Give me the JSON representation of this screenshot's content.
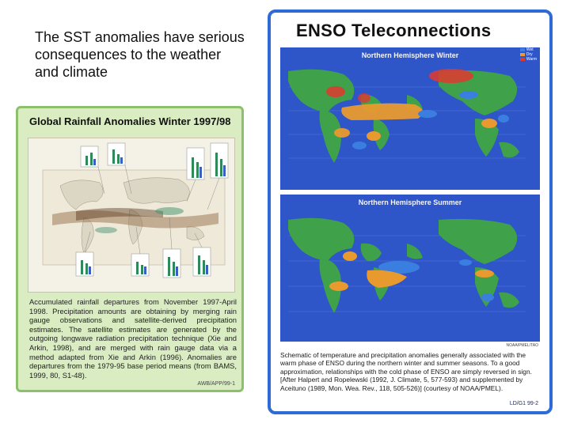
{
  "intro_text": "The SST anomalies have serious consequences to the weather and climate",
  "left_card": {
    "title": "Global Rainfall Anomalies Winter 1997/98",
    "description": "Accumulated rainfall departures from November 1997-April 1998. Precipitation amounts are obtaining by merging rain gauge observations and satellite-derived precipitation estimates. The satellite estimates are generated by the outgoing longwave radiation precipitation technique (Xie and Arkin, 1998), and are merged with rain gauge data via a method adapted from Xie and Arkin (1996). Anomalies are departures from the 1979-95 base period means (from BAMS, 1999, 80, S1-48).",
    "code": "AWB/APP/99-1"
  },
  "right_card": {
    "title": "ENSO Teleconnections",
    "winter_title": "Northern Hemisphere Winter",
    "summer_title": "Northern Hemisphere Summer",
    "legend": [
      "Wet",
      "Dry",
      "Warm"
    ],
    "caption": "Schematic of temperature and precipitation anomalies generally associated with the warm phase of ENSO during the northern winter and summer seasons. To a good approximation, relationships with the cold phase of ENSO are simply reversed in sign. [After Halpert and Ropelewski (1992, J. Climate, 5, 577-593) and supplemented by Aceituno (1989, Mon. Wea. Rev., 118, 505-526)] (courtesy of NOAA/PMEL).",
    "code": "LD/G1 99-2",
    "mini_code": "NOAA/PMEL/TAO"
  },
  "colors": {
    "left_card_bg": "#d9ecc2",
    "left_card_border": "#8cc06c",
    "right_card_border": "#2f6bd6",
    "map_ocean": "#2f56c8",
    "land": "#3fa14a",
    "wet": "#3a7fe0",
    "dry": "#e89a2e",
    "warm": "#e0382f"
  }
}
